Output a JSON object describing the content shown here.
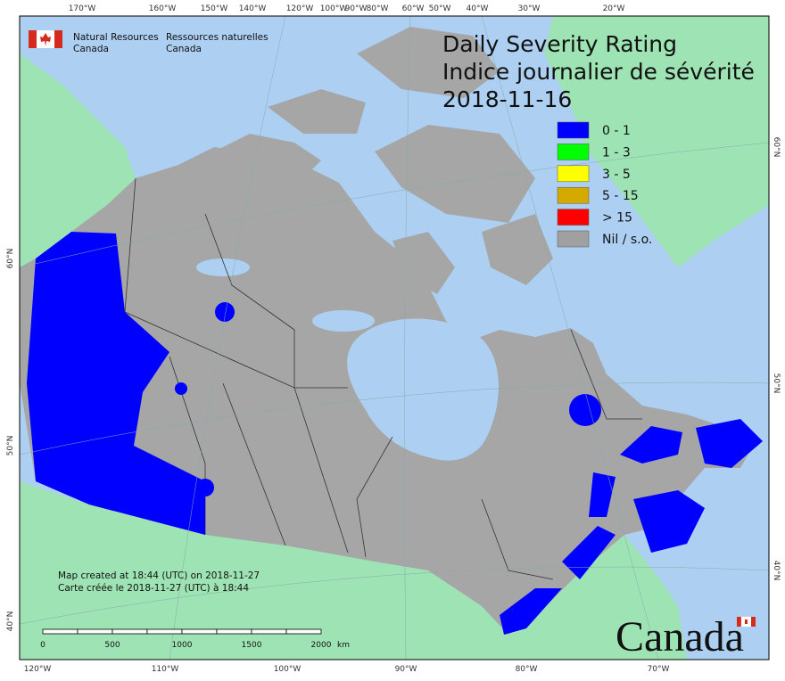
{
  "header": {
    "agency_en": [
      "Natural Resources",
      "Canada"
    ],
    "agency_fr": [
      "Ressources naturelles",
      "Canada"
    ]
  },
  "title": [
    "Daily Severity Rating",
    "Indice journalier de sévérité",
    "2018-11-16"
  ],
  "legend": [
    {
      "label": "0 - 1",
      "color": "#0000ff"
    },
    {
      "label": "1 - 3",
      "color": "#00ff00"
    },
    {
      "label": "3 - 5",
      "color": "#ffff00"
    },
    {
      "label": "5 - 15",
      "color": "#d4aa00"
    },
    {
      "label": "> 15",
      "color": "#ff0000"
    },
    {
      "label": "Nil / s.o.",
      "color": "#a0a0a0"
    }
  ],
  "footnote": [
    "Map created at 18:44 (UTC) on 2018-11-27",
    "Carte créée le 2018-11-27 (UTC) à 18:44"
  ],
  "scale_bar": {
    "labels": [
      "0",
      "500",
      "1000",
      "1500",
      "2000"
    ],
    "unit": "km"
  },
  "graticule": {
    "top": [
      "170°W",
      "160°W",
      "150°W",
      "140°W",
      "120°W",
      "100°W",
      "90°W",
      "80°W",
      "60°W",
      "50°W",
      "40°W",
      "30°W",
      "20°W"
    ],
    "bottom": [
      "120°W",
      "110°W",
      "100°W",
      "90°W",
      "80°W",
      "70°W"
    ],
    "left": [
      "60°N",
      "50°N",
      "40°N"
    ],
    "right": [
      "60°N",
      "50°N",
      "40°N"
    ]
  },
  "wordmark": "Canada"
}
